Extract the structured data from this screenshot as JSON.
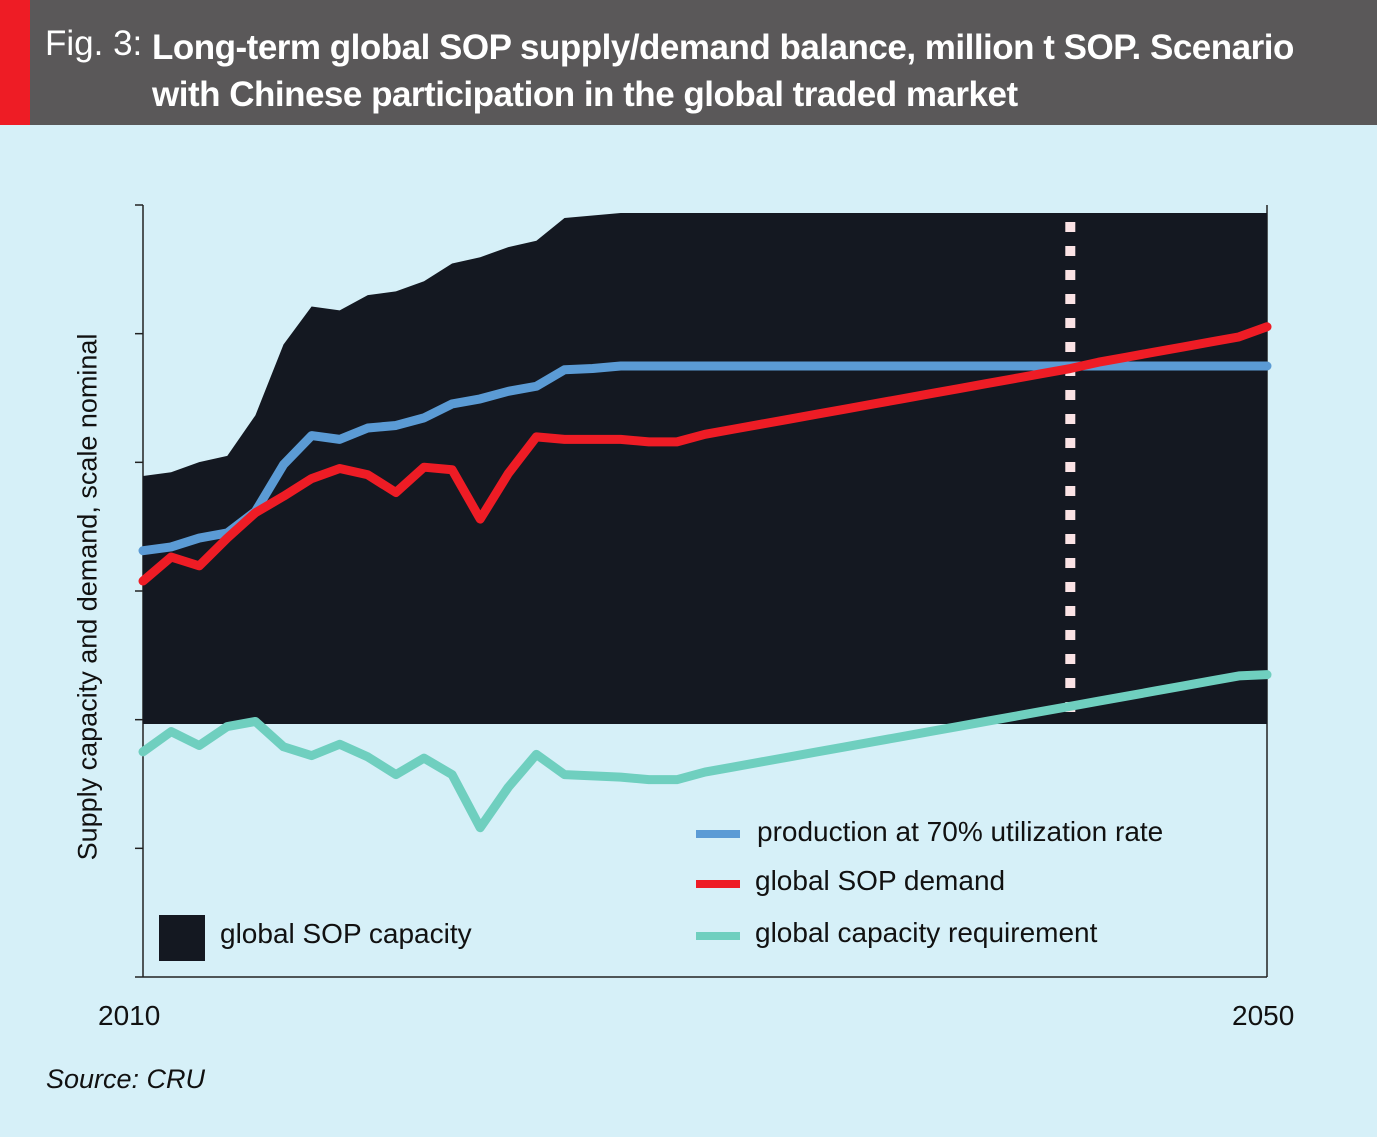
{
  "header": {
    "fig_label": "Fig. 3:",
    "title": "Long-term global SOP supply/demand balance, million t SOP. Scenario with Chinese participation in the global traded market",
    "accent_color": "#ee1c25",
    "bar_color": "#5a5859"
  },
  "source": "Source: CRU",
  "chart_data": {
    "type": "area",
    "title": "Long-term global SOP supply/demand balance, million t SOP. Scenario with Chinese participation in the global traded market",
    "ylabel": "Supply capacity and demand, scale nominal",
    "xlabel": "",
    "x_tick_labels": [
      "2010",
      "2050"
    ],
    "xlim": [
      2010,
      2050
    ],
    "ylim": [
      0,
      6
    ],
    "grid": false,
    "legend_position": "bottom",
    "marker_year": 2043,
    "x": [
      2010,
      2011,
      2012,
      2013,
      2014,
      2015,
      2016,
      2017,
      2018,
      2019,
      2020,
      2021,
      2022,
      2023,
      2024,
      2025,
      2026,
      2027,
      2028,
      2029,
      2030,
      2031,
      2032,
      2033,
      2034,
      2035,
      2036,
      2037,
      2038,
      2039,
      2040,
      2041,
      2042,
      2043,
      2044,
      2045,
      2046,
      2047,
      2048,
      2049,
      2050
    ],
    "series": [
      {
        "name": "global SOP capacity",
        "kind": "area",
        "color": "#141821",
        "baseline": 2.0,
        "values": [
          3.96,
          3.99,
          4.07,
          4.12,
          4.44,
          5.0,
          5.3,
          5.27,
          5.39,
          5.42,
          5.5,
          5.64,
          5.69,
          5.77,
          5.82,
          6.0,
          6.02,
          6.04,
          6.04,
          6.04,
          6.04,
          6.04,
          6.04,
          6.04,
          6.04,
          6.04,
          6.04,
          6.04,
          6.04,
          6.04,
          6.04,
          6.04,
          6.04,
          6.04,
          6.04,
          6.04,
          6.04,
          6.04,
          6.04,
          6.04,
          6.04
        ]
      },
      {
        "name": "production at 70% utilization rate",
        "kind": "line",
        "color": "#5b9bd5",
        "values": [
          3.37,
          3.4,
          3.47,
          3.51,
          3.68,
          4.05,
          4.28,
          4.25,
          4.34,
          4.36,
          4.42,
          4.53,
          4.57,
          4.63,
          4.67,
          4.8,
          4.81,
          4.83,
          4.83,
          4.83,
          4.83,
          4.83,
          4.83,
          4.83,
          4.83,
          4.83,
          4.83,
          4.83,
          4.83,
          4.83,
          4.83,
          4.83,
          4.83,
          4.83,
          4.83,
          4.83,
          4.83,
          4.83,
          4.83,
          4.83,
          4.83
        ]
      },
      {
        "name": "global SOP demand",
        "kind": "line",
        "color": "#ee1c25",
        "values": [
          3.13,
          3.32,
          3.25,
          3.47,
          3.67,
          3.8,
          3.94,
          4.02,
          3.97,
          3.83,
          4.03,
          4.01,
          3.62,
          3.98,
          4.27,
          4.25,
          4.25,
          4.25,
          4.23,
          4.23,
          4.29,
          4.33,
          4.37,
          4.41,
          4.45,
          4.49,
          4.53,
          4.57,
          4.61,
          4.65,
          4.69,
          4.73,
          4.77,
          4.81,
          4.86,
          4.9,
          4.94,
          4.98,
          5.02,
          5.06,
          5.14
        ]
      },
      {
        "name": "global capacity requirement",
        "kind": "line",
        "color": "#6fcfbf",
        "values": [
          1.78,
          1.94,
          1.83,
          1.98,
          2.02,
          1.82,
          1.75,
          1.84,
          1.74,
          1.6,
          1.73,
          1.6,
          1.18,
          1.5,
          1.76,
          1.6,
          1.59,
          1.58,
          1.56,
          1.56,
          1.62,
          1.66,
          1.7,
          1.74,
          1.78,
          1.82,
          1.86,
          1.9,
          1.94,
          1.98,
          2.02,
          2.06,
          2.1,
          2.14,
          2.18,
          2.22,
          2.26,
          2.3,
          2.34,
          2.38,
          2.39
        ]
      }
    ]
  }
}
